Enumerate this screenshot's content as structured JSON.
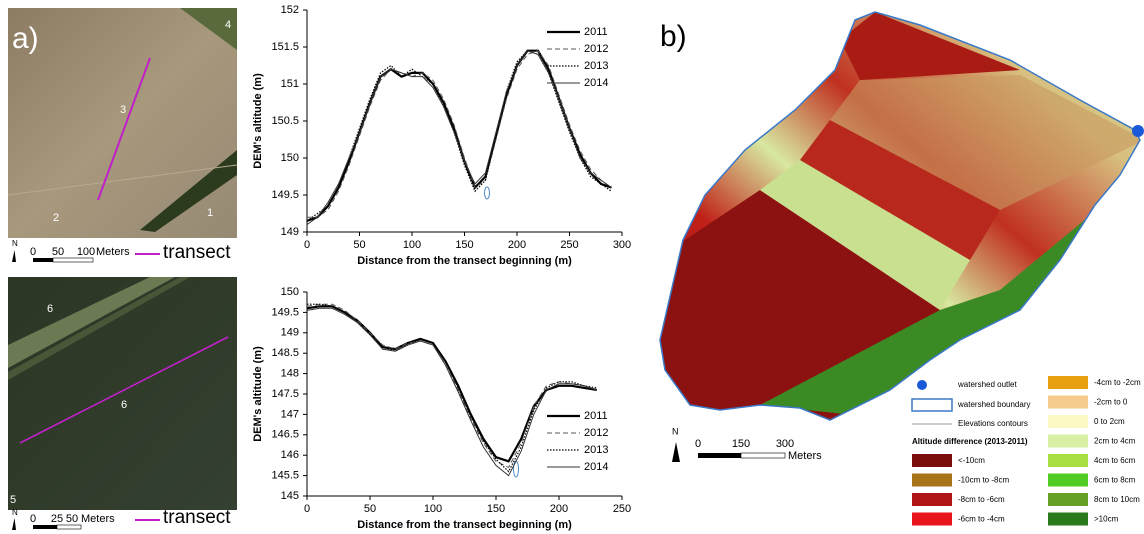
{
  "chart_data": [
    {
      "type": "line",
      "x_label": "Distance from the transect beginning (m)",
      "y_label": "DEM's altitude (m)",
      "x": [
        0,
        10,
        20,
        30,
        40,
        50,
        60,
        70,
        80,
        90,
        100,
        110,
        120,
        130,
        140,
        150,
        160,
        170,
        180,
        190,
        200,
        210,
        220,
        230,
        240,
        250,
        260,
        270,
        280,
        290
      ],
      "xlim": [
        0,
        300
      ],
      "xticks": [
        0,
        50,
        100,
        150,
        200,
        250,
        300
      ],
      "ylim": [
        149,
        152
      ],
      "yticks": [
        149,
        149.5,
        150,
        150.5,
        151,
        151.5,
        152
      ],
      "legend": "upper right",
      "series": [
        {
          "name": "2011",
          "color": "#000000",
          "dash": "solid-thick",
          "values": [
            149.15,
            149.2,
            149.35,
            149.6,
            149.95,
            150.35,
            150.75,
            151.1,
            151.2,
            151.1,
            151.15,
            151.15,
            151.0,
            150.75,
            150.4,
            149.95,
            149.6,
            149.75,
            150.3,
            150.85,
            151.25,
            151.45,
            151.45,
            151.2,
            150.8,
            150.4,
            150.05,
            149.8,
            149.65,
            149.6
          ]
        },
        {
          "name": "2012",
          "color": "#555555",
          "dash": "dashed",
          "values": [
            149.2,
            149.2,
            149.3,
            149.55,
            149.9,
            150.3,
            150.7,
            151.05,
            151.2,
            151.15,
            151.1,
            151.15,
            151.05,
            150.8,
            150.45,
            150.0,
            149.6,
            149.7,
            150.25,
            150.8,
            151.2,
            151.4,
            151.45,
            151.25,
            150.85,
            150.45,
            150.1,
            149.85,
            149.7,
            149.6
          ]
        },
        {
          "name": "2013",
          "color": "#000000",
          "dash": "dotted",
          "values": [
            149.15,
            149.25,
            149.35,
            149.6,
            150.0,
            150.4,
            150.8,
            151.15,
            151.25,
            151.1,
            151.2,
            151.1,
            151.0,
            150.7,
            150.35,
            149.9,
            149.55,
            149.7,
            150.3,
            150.9,
            151.3,
            151.45,
            151.4,
            151.15,
            150.75,
            150.35,
            150.0,
            149.75,
            149.65,
            149.55
          ]
        },
        {
          "name": "2014",
          "color": "#333333",
          "dash": "solid",
          "values": [
            149.1,
            149.2,
            149.4,
            149.65,
            150.0,
            150.35,
            150.75,
            151.1,
            151.2,
            151.15,
            151.1,
            151.1,
            150.95,
            150.7,
            150.35,
            149.95,
            149.65,
            149.8,
            150.35,
            150.9,
            151.25,
            151.45,
            151.4,
            151.15,
            150.8,
            150.4,
            150.0,
            149.8,
            149.7,
            149.6
          ]
        }
      ]
    },
    {
      "type": "line",
      "x_label": "Distance from the transect beginning (m)",
      "y_label": "DEM's altitude (m)",
      "x": [
        0,
        10,
        20,
        30,
        40,
        50,
        60,
        70,
        80,
        90,
        100,
        110,
        120,
        130,
        140,
        150,
        160,
        170,
        180,
        190,
        200,
        210,
        220,
        230
      ],
      "xlim": [
        0,
        250
      ],
      "xticks": [
        0,
        50,
        100,
        150,
        200,
        250
      ],
      "ylim": [
        145,
        150
      ],
      "yticks": [
        145,
        145.5,
        146,
        146.5,
        147,
        147.5,
        148,
        148.5,
        149,
        149.5,
        150
      ],
      "legend": "lower right",
      "series": [
        {
          "name": "2011",
          "color": "#000000",
          "dash": "solid-thick",
          "values": [
            149.6,
            149.65,
            149.65,
            149.5,
            149.3,
            149.0,
            148.65,
            148.6,
            148.75,
            148.85,
            148.75,
            148.3,
            147.7,
            147.0,
            146.4,
            145.95,
            145.85,
            146.4,
            147.2,
            147.6,
            147.7,
            147.7,
            147.65,
            147.6
          ]
        },
        {
          "name": "2012",
          "color": "#555555",
          "dash": "dashed",
          "values": [
            149.65,
            149.7,
            149.7,
            149.55,
            149.3,
            149.0,
            148.7,
            148.6,
            148.75,
            148.8,
            148.7,
            148.25,
            147.6,
            146.9,
            146.3,
            145.85,
            145.7,
            146.3,
            147.2,
            147.7,
            147.8,
            147.75,
            147.7,
            147.6
          ]
        },
        {
          "name": "2013",
          "color": "#000000",
          "dash": "dotted",
          "values": [
            149.7,
            149.7,
            149.65,
            149.5,
            149.25,
            148.95,
            148.65,
            148.55,
            148.7,
            148.85,
            148.75,
            148.3,
            147.65,
            146.95,
            146.35,
            145.9,
            145.6,
            146.2,
            147.1,
            147.65,
            147.8,
            147.8,
            147.7,
            147.65
          ]
        },
        {
          "name": "2014",
          "color": "#333333",
          "dash": "solid",
          "values": [
            149.55,
            149.6,
            149.6,
            149.45,
            149.25,
            148.95,
            148.6,
            148.55,
            148.7,
            148.8,
            148.7,
            148.2,
            147.55,
            146.85,
            146.2,
            145.75,
            145.5,
            146.1,
            147.0,
            147.6,
            147.75,
            147.75,
            147.7,
            147.6
          ]
        }
      ]
    }
  ],
  "panel_a": {
    "label": "a)",
    "top": {
      "fields": [
        "4",
        "3",
        "2",
        "1"
      ],
      "north": "N",
      "scale": [
        "0",
        "50",
        "100"
      ],
      "unit": "Meters",
      "transect": "transect"
    },
    "bottom": {
      "fields": [
        "6",
        "6",
        "5"
      ],
      "north": "N",
      "scale": [
        "0",
        "25",
        "50"
      ],
      "unit": "Meters",
      "transect": "transect"
    }
  },
  "panel_b": {
    "label": "b)",
    "north": "N",
    "scale": [
      "0",
      "150",
      "300"
    ],
    "unit": "Meters",
    "legend": {
      "outlet": "watershed outlet",
      "boundary": "watershed boundary",
      "contours": "Elevations contours",
      "title": "Altitude difference (2013-2011)",
      "classes": [
        {
          "label": "<-10cm",
          "color": "#7a0c0c"
        },
        {
          "label": "-10cm to -8cm",
          "color": "#a8741a"
        },
        {
          "label": "-8cm to -6cm",
          "color": "#b01414"
        },
        {
          "label": "-6cm to -4cm",
          "color": "#e8141c"
        },
        {
          "label": "-4cm to -2cm",
          "color": "#e8a010"
        },
        {
          "label": "-2cm to 0",
          "color": "#f5cc8c"
        },
        {
          "label": "0 to 2cm",
          "color": "#fbfac4"
        },
        {
          "label": "2cm to 4cm",
          "color": "#d8f0a4"
        },
        {
          "label": "4cm to 6cm",
          "color": "#a8e044"
        },
        {
          "label": "6cm to 8cm",
          "color": "#50cc22"
        },
        {
          "label": "8cm to 10cm",
          "color": "#66a024"
        },
        {
          "label": ">10cm",
          "color": "#2a7a1c"
        }
      ]
    }
  }
}
